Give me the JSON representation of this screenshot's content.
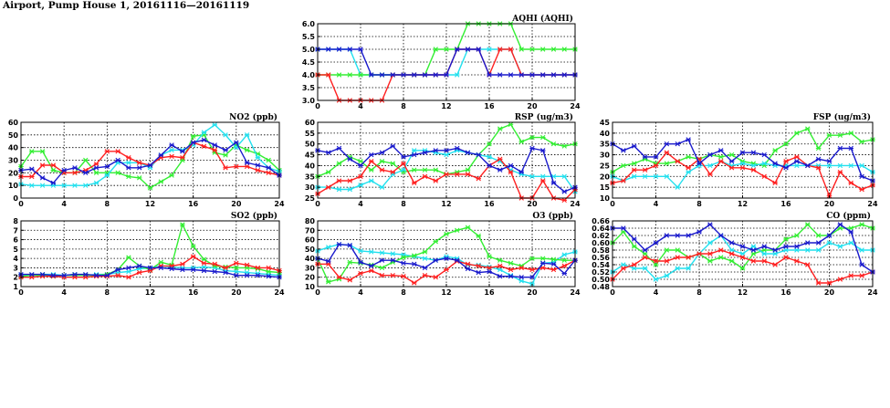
{
  "page": {
    "title": "Airport, Pump House 1, 20161116—20161119"
  },
  "colors": {
    "red": "#ff2020",
    "green": "#33ee33",
    "blue": "#1a1acc",
    "cyan": "#22e0ee"
  },
  "chart_data": [
    {
      "id": "aqhi",
      "type": "line",
      "title": "AQHI (AQHI)",
      "xlim": [
        0,
        24
      ],
      "xticks": [
        0,
        4,
        8,
        12,
        16,
        20,
        24
      ],
      "ylim": [
        3.0,
        6.0
      ],
      "yticks": [
        "3.0",
        "3.5",
        "4.0",
        "4.5",
        "5.0",
        "5.5",
        "6.0"
      ],
      "series": [
        {
          "color": "cyan",
          "values": [
            5,
            5,
            5,
            5,
            4,
            4,
            4,
            4,
            4,
            4,
            4,
            4,
            4,
            4,
            5,
            5,
            5,
            5,
            5,
            4,
            4,
            4,
            4,
            4,
            4
          ]
        },
        {
          "color": "green",
          "values": [
            4,
            4,
            4,
            4,
            4,
            4,
            4,
            4,
            4,
            4,
            4,
            5,
            5,
            5,
            6,
            6,
            6,
            6,
            6,
            5,
            5,
            5,
            5,
            5,
            5
          ]
        },
        {
          "color": "red",
          "values": [
            4,
            4,
            3,
            3,
            3,
            3,
            3,
            4,
            4,
            4,
            4,
            4,
            4,
            5,
            5,
            5,
            4,
            5,
            5,
            4,
            4,
            4,
            4,
            4,
            4
          ]
        },
        {
          "color": "blue",
          "values": [
            5,
            5,
            5,
            5,
            5,
            4,
            4,
            4,
            4,
            4,
            4,
            4,
            4,
            5,
            5,
            5,
            4,
            4,
            4,
            4,
            4,
            4,
            4,
            4,
            4
          ]
        }
      ]
    },
    {
      "id": "no2",
      "type": "line",
      "title": "NO2 (ppb)",
      "xlim": [
        0,
        24
      ],
      "xticks": [
        0,
        4,
        8,
        12,
        16,
        20,
        24
      ],
      "ylim": [
        0,
        60
      ],
      "yticks": [
        "0",
        "10",
        "20",
        "30",
        "40",
        "50",
        "60"
      ],
      "series": [
        {
          "color": "green",
          "values": [
            25,
            37,
            37,
            22,
            20,
            20,
            30,
            20,
            20,
            20,
            17,
            16,
            8,
            13,
            18,
            30,
            49,
            50,
            36,
            34,
            42,
            38,
            35,
            30,
            22
          ]
        },
        {
          "color": "cyan",
          "values": [
            11,
            10,
            10,
            10,
            10,
            10,
            10,
            12,
            18,
            28,
            28,
            28,
            24,
            34,
            38,
            38,
            42,
            52,
            58,
            50,
            40,
            50,
            32,
            24,
            21
          ]
        },
        {
          "color": "red",
          "values": [
            17,
            17,
            26,
            26,
            20,
            20,
            22,
            27,
            37,
            37,
            32,
            28,
            26,
            32,
            33,
            32,
            44,
            41,
            38,
            24,
            25,
            25,
            22,
            20,
            18
          ]
        },
        {
          "color": "blue",
          "values": [
            22,
            23,
            16,
            12,
            22,
            24,
            20,
            24,
            25,
            30,
            24,
            24,
            26,
            34,
            42,
            37,
            44,
            46,
            42,
            38,
            44,
            28,
            26,
            24,
            18
          ]
        }
      ]
    },
    {
      "id": "rsp",
      "type": "line",
      "title": "RSP (ug/m3)",
      "xlim": [
        0,
        24
      ],
      "xticks": [
        0,
        4,
        8,
        12,
        16,
        20,
        24
      ],
      "ylim": [
        25,
        60
      ],
      "yticks": [
        "25",
        "30",
        "35",
        "40",
        "45",
        "50",
        "55",
        "60"
      ],
      "series": [
        {
          "color": "green",
          "values": [
            35,
            37,
            41,
            44,
            42,
            38,
            42,
            41,
            37,
            38,
            38,
            38,
            36,
            37,
            38,
            45,
            50,
            57,
            59,
            51,
            53,
            53,
            50,
            49,
            50
          ]
        },
        {
          "color": "cyan",
          "values": [
            30,
            30,
            29,
            29,
            31,
            33,
            30,
            36,
            38,
            47,
            47,
            46,
            45,
            47,
            46,
            45,
            44,
            42,
            38,
            36,
            35,
            35,
            35,
            35,
            28
          ]
        },
        {
          "color": "red",
          "values": [
            27,
            30,
            33,
            33,
            35,
            42,
            38,
            37,
            41,
            32,
            35,
            33,
            36,
            36,
            36,
            34,
            40,
            43,
            37,
            25,
            25,
            33,
            25,
            24,
            29
          ]
        },
        {
          "color": "blue",
          "values": [
            47,
            46,
            48,
            43,
            40,
            45,
            46,
            49,
            44,
            45,
            46,
            47,
            47,
            48,
            46,
            45,
            40,
            38,
            40,
            37,
            48,
            47,
            32,
            28,
            30
          ]
        }
      ]
    },
    {
      "id": "fsp",
      "type": "line",
      "title": "FSP (ug/m3)",
      "xlim": [
        0,
        24
      ],
      "xticks": [
        0,
        4,
        8,
        12,
        16,
        20,
        24
      ],
      "ylim": [
        10,
        45
      ],
      "yticks": [
        "10",
        "15",
        "20",
        "25",
        "30",
        "35",
        "40",
        "45"
      ],
      "series": [
        {
          "color": "green",
          "values": [
            22,
            25,
            26,
            28,
            26,
            26,
            27,
            29,
            28,
            30,
            29,
            30,
            27,
            26,
            25,
            32,
            35,
            40,
            42,
            33,
            39,
            39,
            40,
            36,
            37
          ]
        },
        {
          "color": "cyan",
          "values": [
            20,
            18,
            20,
            20,
            20,
            20,
            15,
            22,
            25,
            25,
            27,
            25,
            26,
            25,
            26,
            25,
            25,
            25,
            25,
            25,
            25,
            25,
            25,
            25,
            22
          ]
        },
        {
          "color": "red",
          "values": [
            17,
            18,
            23,
            23,
            25,
            31,
            27,
            24,
            28,
            21,
            27,
            24,
            24,
            23,
            20,
            17,
            27,
            29,
            25,
            24,
            11,
            22,
            17,
            14,
            16
          ]
        },
        {
          "color": "blue",
          "values": [
            35,
            32,
            34,
            29,
            29,
            35,
            35,
            37,
            26,
            30,
            32,
            27,
            31,
            31,
            30,
            26,
            24,
            27,
            25,
            28,
            27,
            33,
            33,
            20,
            18
          ]
        }
      ]
    },
    {
      "id": "so2",
      "type": "line",
      "title": "SO2 (ppb)",
      "xlim": [
        0,
        24
      ],
      "xticks": [
        0,
        4,
        8,
        12,
        16,
        20,
        24
      ],
      "ylim": [
        1,
        8
      ],
      "yticks": [
        "1",
        "2",
        "3",
        "4",
        "5",
        "6",
        "7",
        "8"
      ],
      "series": [
        {
          "color": "cyan",
          "values": [
            2.2,
            2.2,
            2.3,
            2.3,
            2.2,
            2.3,
            2.2,
            2.3,
            2.3,
            2.5,
            2.6,
            2.9,
            3.0,
            3.2,
            3.1,
            3.0,
            3.0,
            3.1,
            3.0,
            2.7,
            2.6,
            2.5,
            2.4,
            2.3,
            2.2
          ]
        },
        {
          "color": "green",
          "values": [
            2.1,
            2.2,
            2.2,
            2.1,
            2.2,
            2.2,
            2.2,
            2.2,
            2.3,
            2.8,
            4.1,
            3.2,
            2.8,
            3.6,
            3.3,
            7.6,
            5.3,
            3.9,
            3.2,
            3.1,
            3.0,
            3.0,
            2.9,
            2.6,
            2.5
          ]
        },
        {
          "color": "red",
          "values": [
            2.0,
            2.0,
            2.1,
            2.1,
            2.0,
            2.0,
            2.0,
            2.1,
            2.1,
            2.2,
            2.0,
            2.5,
            2.7,
            3.2,
            3.2,
            3.4,
            4.2,
            3.5,
            3.4,
            3.0,
            3.5,
            3.3,
            3.0,
            3.0,
            2.7
          ]
        },
        {
          "color": "blue",
          "values": [
            2.3,
            2.3,
            2.3,
            2.2,
            2.2,
            2.3,
            2.3,
            2.2,
            2.2,
            2.8,
            3.0,
            3.2,
            3.0,
            3.0,
            2.9,
            2.8,
            2.8,
            2.7,
            2.6,
            2.5,
            2.2,
            2.2,
            2.2,
            2.1,
            2.0
          ]
        }
      ]
    },
    {
      "id": "o3",
      "type": "line",
      "title": "O3 (ppb)",
      "xlim": [
        0,
        24
      ],
      "xticks": [
        0,
        4,
        8,
        12,
        16,
        20,
        24
      ],
      "ylim": [
        10,
        80
      ],
      "yticks": [
        "10",
        "20",
        "30",
        "40",
        "50",
        "60",
        "70",
        "80"
      ],
      "series": [
        {
          "color": "cyan",
          "values": [
            48,
            52,
            55,
            54,
            48,
            47,
            46,
            45,
            44,
            42,
            40,
            38,
            42,
            40,
            33,
            33,
            31,
            28,
            22,
            16,
            13,
            35,
            36,
            44,
            47
          ]
        },
        {
          "color": "green",
          "values": [
            40,
            15,
            18,
            36,
            35,
            33,
            30,
            36,
            41,
            43,
            47,
            58,
            66,
            70,
            73,
            64,
            42,
            38,
            35,
            32,
            40,
            40,
            39,
            38,
            38
          ]
        },
        {
          "color": "red",
          "values": [
            34,
            34,
            20,
            17,
            24,
            27,
            22,
            22,
            21,
            14,
            22,
            20,
            28,
            37,
            34,
            32,
            30,
            32,
            28,
            30,
            28,
            30,
            28,
            32,
            38
          ]
        },
        {
          "color": "blue",
          "values": [
            40,
            37,
            55,
            54,
            36,
            32,
            38,
            38,
            35,
            34,
            30,
            38,
            40,
            38,
            29,
            25,
            26,
            21,
            21,
            20,
            20,
            35,
            34,
            24,
            38
          ]
        }
      ]
    },
    {
      "id": "co",
      "type": "line",
      "title": "CO (ppm)",
      "xlim": [
        0,
        24
      ],
      "xticks": [
        0,
        4,
        8,
        12,
        16,
        20,
        24
      ],
      "ylim": [
        0.48,
        0.66
      ],
      "yticks": [
        "0.48",
        "0.50",
        "0.52",
        "0.54",
        "0.56",
        "0.58",
        "0.60",
        "0.62",
        "0.64",
        "0.66"
      ],
      "series": [
        {
          "color": "green",
          "values": [
            0.6,
            0.63,
            0.59,
            0.57,
            0.54,
            0.58,
            0.58,
            0.56,
            0.57,
            0.55,
            0.56,
            0.55,
            0.53,
            0.57,
            0.58,
            0.58,
            0.61,
            0.62,
            0.65,
            0.62,
            0.62,
            0.64,
            0.64,
            0.65,
            0.64
          ]
        },
        {
          "color": "cyan",
          "values": [
            0.52,
            0.54,
            0.53,
            0.53,
            0.5,
            0.51,
            0.53,
            0.53,
            0.57,
            0.6,
            0.62,
            0.58,
            0.57,
            0.59,
            0.57,
            0.57,
            0.58,
            0.58,
            0.58,
            0.58,
            0.6,
            0.59,
            0.6,
            0.58,
            0.58
          ]
        },
        {
          "color": "red",
          "values": [
            0.5,
            0.53,
            0.54,
            0.56,
            0.55,
            0.55,
            0.56,
            0.56,
            0.57,
            0.57,
            0.58,
            0.57,
            0.56,
            0.55,
            0.55,
            0.54,
            0.56,
            0.55,
            0.54,
            0.49,
            0.49,
            0.5,
            0.51,
            0.51,
            0.52
          ]
        },
        {
          "color": "blue",
          "values": [
            0.64,
            0.64,
            0.61,
            0.58,
            0.6,
            0.62,
            0.62,
            0.62,
            0.63,
            0.65,
            0.62,
            0.6,
            0.59,
            0.58,
            0.59,
            0.58,
            0.59,
            0.59,
            0.6,
            0.6,
            0.62,
            0.65,
            0.63,
            0.54,
            0.52
          ]
        }
      ]
    }
  ]
}
